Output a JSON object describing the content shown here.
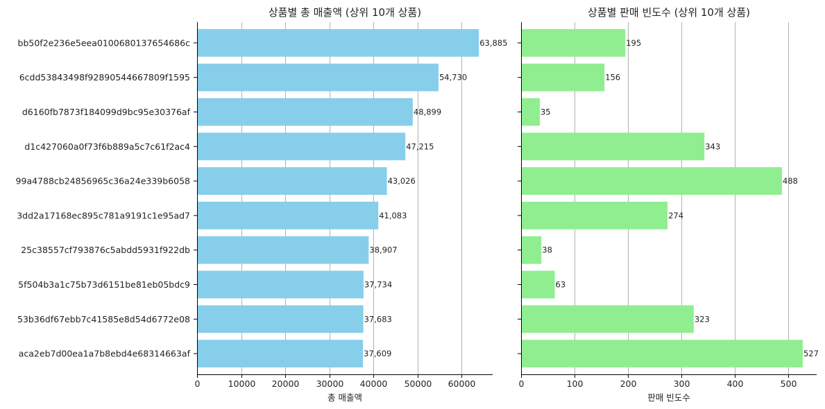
{
  "chart_data": [
    {
      "type": "bar",
      "orientation": "horizontal",
      "title": "상품별 총 매출액 (상위 10개 상품)",
      "xlabel": "총 매출액",
      "ylabel": "",
      "xlim": [
        0,
        67000
      ],
      "xticks": [
        0,
        10000,
        20000,
        30000,
        40000,
        50000,
        60000
      ],
      "color": "#87CEEB",
      "grid": "vertical",
      "categories": [
        "bb50f2e236e5eea0100680137654686c",
        "6cdd53843498f92890544667809f1595",
        "d6160fb7873f184099d9bc95e30376af",
        "d1c427060a0f73f6b889a5c7c61f2ac4",
        "99a4788cb24856965c36a24e339b6058",
        "3dd2a17168ec895c781a9191c1e95ad7",
        "25c38557cf793876c5abdd5931f922db",
        "5f504b3a1c75b73d6151be81eb05bdc9",
        "53b36df67ebb7c41585e8d54d6772e08",
        "aca2eb7d00ea1a7b8ebd4e68314663af"
      ],
      "values": [
        63885,
        54730,
        48899,
        47215,
        43026,
        41083,
        38907,
        37734,
        37683,
        37609
      ],
      "labels": [
        "63,885",
        "54,730",
        "48,899",
        "47,215",
        "43,026",
        "41,083",
        "38,907",
        "37,734",
        "37,683",
        "37,609"
      ]
    },
    {
      "type": "bar",
      "orientation": "horizontal",
      "title": "상품별 판매 빈도수 (상위 10개 상품)",
      "xlabel": "판매 빈도수",
      "ylabel": "",
      "xlim": [
        0,
        553
      ],
      "xticks": [
        0,
        100,
        200,
        300,
        400,
        500
      ],
      "color": "#90EE90",
      "grid": "vertical",
      "values": [
        195,
        156,
        35,
        343,
        488,
        274,
        38,
        63,
        323,
        527
      ],
      "labels": [
        "195",
        "156",
        "35",
        "343",
        "488",
        "274",
        "38",
        "63",
        "323",
        "527"
      ]
    }
  ]
}
